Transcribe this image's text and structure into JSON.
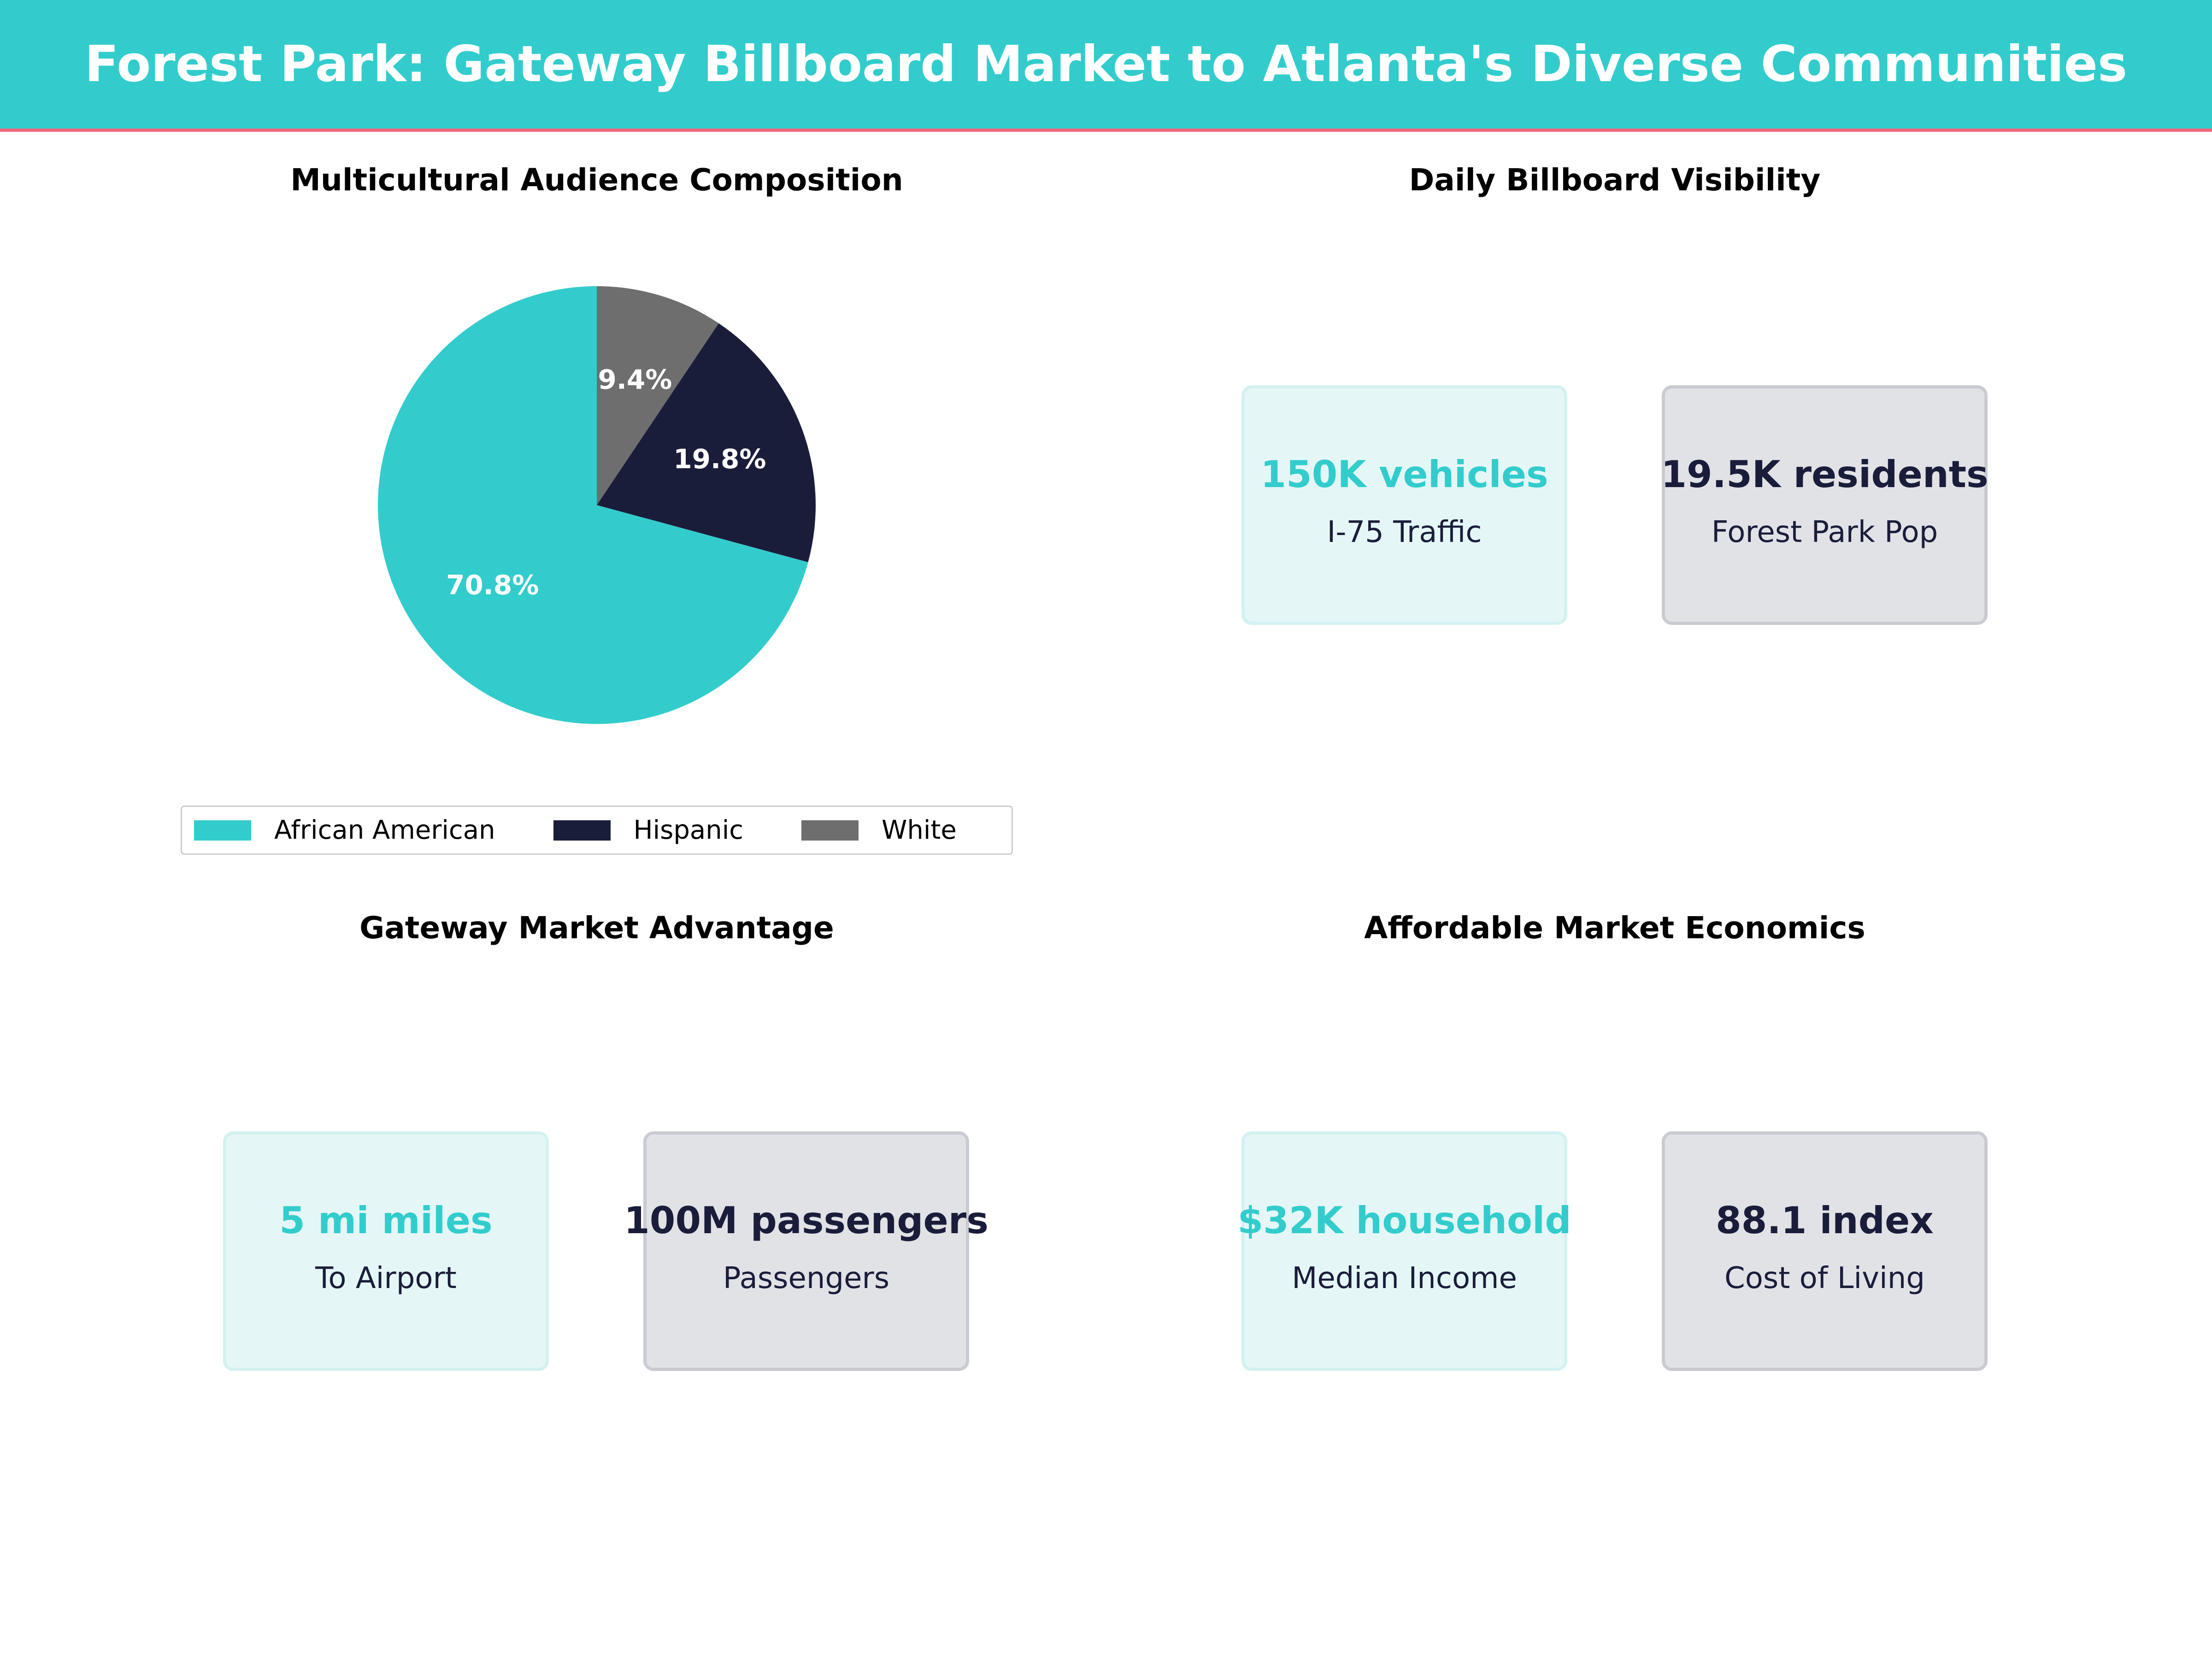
{
  "title": "Forest Park: Gateway Billboard Market to Atlanta's Diverse Communities",
  "colors": {
    "teal": "#33CCCC",
    "navy": "#1A1D3A",
    "grey": "#6E6E6E",
    "accent_line": "#F0657A"
  },
  "panels": {
    "audience": {
      "title": "Multicultural Audience Composition"
    },
    "visibility": {
      "title": "Daily Billboard Visibility",
      "cards": [
        {
          "value": "150K vehicles",
          "label": "I-75 Traffic"
        },
        {
          "value": "19.5K residents",
          "label": "Forest Park Pop"
        }
      ]
    },
    "gateway": {
      "title": "Gateway Market Advantage",
      "cards": [
        {
          "value": "5 mi miles",
          "label": "To Airport"
        },
        {
          "value": "100M passengers",
          "label": "Passengers"
        }
      ]
    },
    "economics": {
      "title": "Affordable Market Economics",
      "cards": [
        {
          "value": "$32K household",
          "label": "Median Income"
        },
        {
          "value": "88.1 index",
          "label": "Cost of Living"
        }
      ]
    }
  },
  "chart_data": {
    "type": "pie",
    "title": "Multicultural Audience Composition",
    "start_angle": 90,
    "direction": "counterclockwise",
    "legend_position": "bottom",
    "slices": [
      {
        "name": "African American",
        "value": 70.8,
        "label": "70.8%",
        "color": "#33CCCC"
      },
      {
        "name": "Hispanic",
        "value": 19.8,
        "label": "19.8%",
        "color": "#1A1D3A"
      },
      {
        "name": "White",
        "value": 9.4,
        "label": "9.4%",
        "color": "#6E6E6E"
      }
    ]
  }
}
